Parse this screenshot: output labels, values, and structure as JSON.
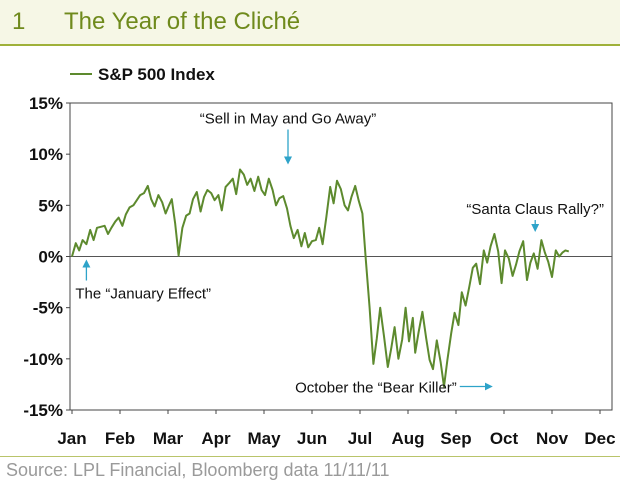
{
  "header": {
    "number": "1",
    "title": "The Year of the Cliché"
  },
  "source": "Source: LPL Financial, Bloomberg data   11/11/11",
  "colors": {
    "line": "#5d8a2e",
    "arrow": "#2ea3c9",
    "header_text": "#6f8a1c",
    "header_bg": "#f6f7e6"
  },
  "chart_data": {
    "type": "line",
    "title": "",
    "xlabel": "",
    "ylabel": "",
    "categories": [
      "Jan",
      "Feb",
      "Mar",
      "Apr",
      "May",
      "Jun",
      "Jul",
      "Aug",
      "Sep",
      "Oct",
      "Nov",
      "Dec"
    ],
    "yticks": [
      "15%",
      "10%",
      "5%",
      "0%",
      "-5%",
      "-10%",
      "-15%"
    ],
    "ylim": [
      -15,
      15
    ],
    "xlim": [
      0,
      11
    ],
    "grid": false,
    "legend": {
      "position": "top-left",
      "entries": [
        "S&P 500 Index"
      ]
    },
    "series": [
      {
        "name": "S&P 500 Index",
        "color": "#5d8a2e",
        "x": [
          0,
          0.08,
          0.15,
          0.22,
          0.3,
          0.38,
          0.45,
          0.52,
          0.6,
          0.68,
          0.75,
          0.82,
          0.9,
          0.97,
          1.05,
          1.12,
          1.2,
          1.28,
          1.35,
          1.42,
          1.5,
          1.58,
          1.65,
          1.72,
          1.8,
          1.88,
          1.95,
          2.02,
          2.08,
          2.15,
          2.22,
          2.3,
          2.38,
          2.45,
          2.52,
          2.6,
          2.68,
          2.75,
          2.82,
          2.9,
          2.97,
          3.05,
          3.12,
          3.2,
          3.28,
          3.35,
          3.42,
          3.5,
          3.58,
          3.65,
          3.72,
          3.8,
          3.88,
          3.95,
          4.02,
          4.1,
          4.18,
          4.25,
          4.32,
          4.4,
          4.48,
          4.55,
          4.62,
          4.7,
          4.78,
          4.85,
          4.92,
          5.0,
          5.08,
          5.15,
          5.22,
          5.3,
          5.38,
          5.45,
          5.52,
          5.6,
          5.68,
          5.75,
          5.82,
          5.9,
          5.97,
          6.05,
          6.12,
          6.2,
          6.28,
          6.35,
          6.42,
          6.5,
          6.58,
          6.65,
          6.72,
          6.8,
          6.88,
          6.95,
          7.02,
          7.1,
          7.15,
          7.22,
          7.3,
          7.38,
          7.45,
          7.52,
          7.6,
          7.68,
          7.75,
          7.82,
          7.9,
          7.97,
          8.05,
          8.12,
          8.2,
          8.28,
          8.35,
          8.42,
          8.5,
          8.58,
          8.65,
          8.72,
          8.8,
          8.88,
          8.95,
          9.02,
          9.1,
          9.18,
          9.25,
          9.32,
          9.4,
          9.48,
          9.55,
          9.62,
          9.7,
          9.78,
          9.85,
          9.92,
          10.0,
          10.08,
          10.15,
          10.22,
          10.28,
          10.35
        ],
        "values": [
          0,
          1.3,
          0.6,
          1.6,
          1.2,
          2.6,
          1.6,
          2.8,
          2.9,
          3.0,
          2.2,
          2.8,
          3.4,
          3.8,
          3.0,
          4.1,
          4.8,
          5.0,
          5.5,
          6.0,
          6.2,
          6.9,
          5.6,
          4.9,
          6.0,
          5.3,
          4.2,
          5.0,
          5.6,
          3.2,
          0.1,
          2.8,
          4.0,
          4.2,
          5.6,
          6.3,
          4.4,
          5.8,
          6.5,
          6.2,
          5.5,
          6.0,
          4.5,
          6.8,
          7.2,
          7.6,
          6.1,
          8.5,
          8.0,
          7.0,
          7.6,
          6.4,
          7.8,
          6.5,
          6.0,
          7.6,
          6.5,
          5.0,
          5.7,
          5.9,
          4.7,
          3.0,
          1.8,
          2.6,
          1.0,
          2.3,
          0.9,
          1.5,
          1.6,
          2.8,
          1.2,
          3.9,
          6.8,
          5.2,
          7.4,
          6.6,
          5.0,
          4.5,
          5.8,
          6.9,
          5.5,
          4.2,
          -0.3,
          -5.0,
          -10.5,
          -8.0,
          -5.0,
          -7.8,
          -10.8,
          -9.0,
          -6.9,
          -10.0,
          -8.1,
          -5.0,
          -8.3,
          -6.0,
          -9.4,
          -7.4,
          -5.4,
          -8.0,
          -10.1,
          -11.0,
          -8.2,
          -10.3,
          -12.7,
          -10.1,
          -7.5,
          -5.5,
          -6.7,
          -3.5,
          -4.8,
          -2.9,
          -1.1,
          -0.7,
          -2.7,
          0.6,
          -0.6,
          1.0,
          2.2,
          0.5,
          -2.6,
          0.6,
          -0.2,
          -1.9,
          -0.8,
          0.5,
          1.5,
          -2.3,
          -0.6,
          0.3,
          -1.2,
          1.6,
          0.4,
          -0.5,
          -2.0,
          0.6,
          0.0,
          0.4,
          0.6,
          0.5
        ]
      }
    ],
    "annotations": [
      {
        "text": "“Sell in May and Go Away”",
        "x": 4.5,
        "y": 8.5
      },
      {
        "text": "“Santa Claus Rally?”",
        "x": 9.4,
        "y": 2.2
      },
      {
        "text": "The “January Effect”",
        "x": 0.3,
        "y": 0
      },
      {
        "text": "October the “Bear Killer”",
        "x": 8.85,
        "y": -12.7
      }
    ]
  }
}
